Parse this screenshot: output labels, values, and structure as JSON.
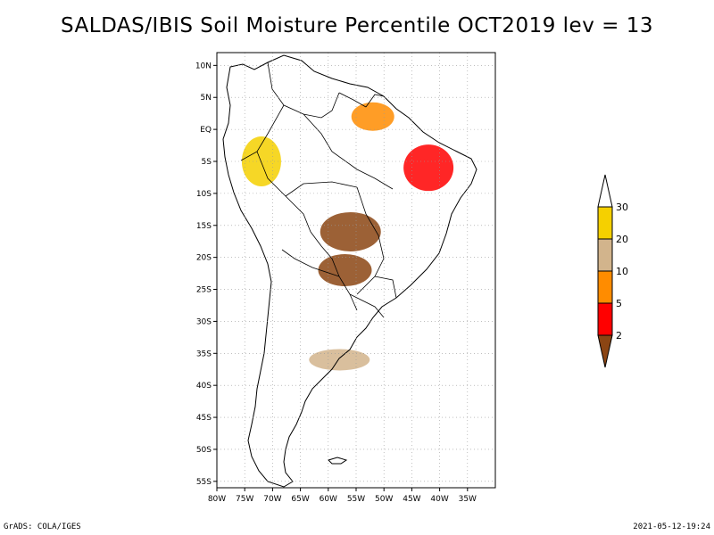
{
  "title": "SALDAS/IBIS Soil Moisture Percentile OCT2019 lev = 13",
  "footer": {
    "left": "GrADS: COLA/IGES",
    "right": "2021-05-12-19:24"
  },
  "map": {
    "region": "South America",
    "lon_range": [
      -80,
      -30
    ],
    "lat_range": [
      -56,
      12
    ],
    "grid": "dotted",
    "x_ticks": [
      "80W",
      "75W",
      "70W",
      "65W",
      "60W",
      "55W",
      "50W",
      "45W",
      "40W",
      "35W"
    ],
    "x_tick_values": [
      -80,
      -75,
      -70,
      -65,
      -60,
      -55,
      -50,
      -45,
      -40,
      -35
    ],
    "y_ticks": [
      "10N",
      "5N",
      "EQ",
      "5S",
      "10S",
      "15S",
      "20S",
      "25S",
      "30S",
      "35S",
      "40S",
      "45S",
      "50S",
      "55S"
    ],
    "y_tick_values": [
      10,
      5,
      0,
      -5,
      -10,
      -15,
      -20,
      -25,
      -30,
      -35,
      -40,
      -45,
      -50,
      -55
    ]
  },
  "legend": {
    "labels": [
      "30",
      "20",
      "10",
      "5",
      "2"
    ],
    "colors": [
      "#ffffff",
      "#f5d000",
      "#d2b48c",
      "#ff8c00",
      "#ff0000",
      "#8b4513"
    ],
    "bin_edges": [
      2,
      5,
      10,
      20,
      30
    ]
  },
  "regions": [
    {
      "name": "central-brazil-dry",
      "lon": -56,
      "lat": -16,
      "color": "#8b4513"
    },
    {
      "name": "parana-dry",
      "lon": -57,
      "lat": -22,
      "color": "#8b4513"
    },
    {
      "name": "northeast-brazil",
      "lon": -42,
      "lat": -6,
      "color": "#ff0000"
    },
    {
      "name": "amazon-north",
      "lon": -52,
      "lat": 2,
      "color": "#ff8c00"
    },
    {
      "name": "buenos-aires",
      "lon": -58,
      "lat": -36,
      "color": "#d2b48c"
    },
    {
      "name": "western-amazon",
      "lon": -72,
      "lat": -5,
      "color": "#f5d000"
    }
  ]
}
